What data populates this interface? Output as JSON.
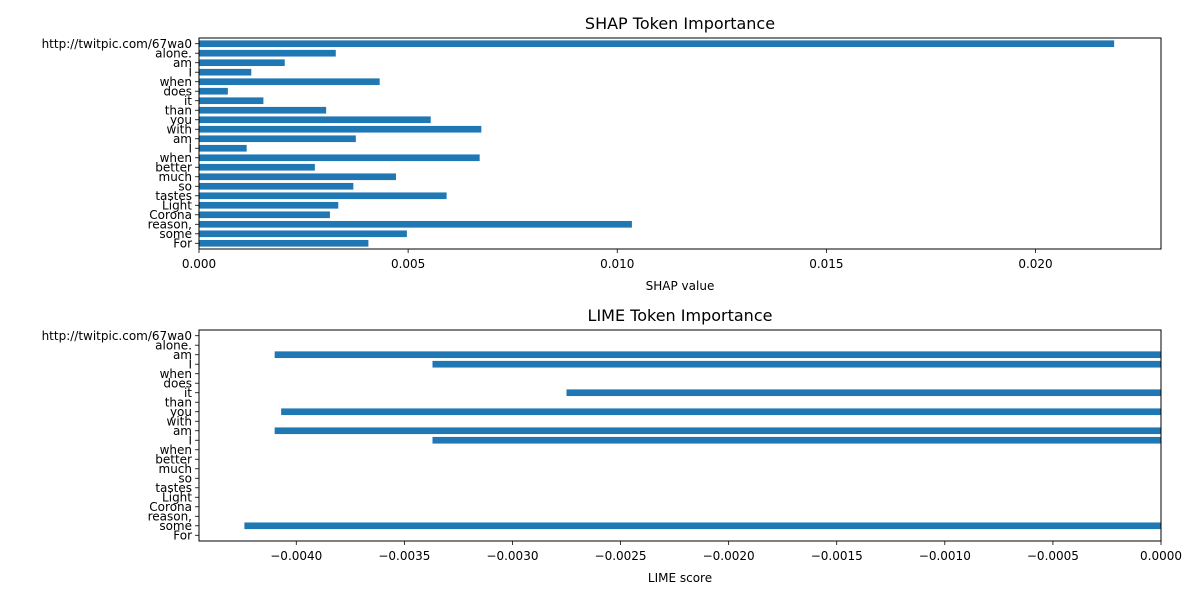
{
  "chart_data": [
    {
      "type": "bar",
      "orientation": "horizontal",
      "title": "SHAP Token Importance",
      "xlabel": "SHAP value",
      "ylabel": "",
      "xlim": [
        0,
        0.023
      ],
      "xticks": [
        0.0,
        0.005,
        0.01,
        0.015,
        0.02
      ],
      "xtick_labels": [
        "0.000",
        "0.005",
        "0.010",
        "0.015",
        "0.020"
      ],
      "bar_color": "#1f77b4",
      "grid": false,
      "categories": [
        "For",
        "some",
        "reason,",
        "Corona",
        "Light",
        "tastes",
        "so",
        "much",
        "better",
        "when",
        "I",
        "am",
        "with",
        "you",
        "than",
        "it",
        "does",
        "when",
        "I",
        "am",
        "alone.",
        "http://twitpic.com/67wa0"
      ],
      "values": [
        0.00405,
        0.00497,
        0.01035,
        0.00313,
        0.00333,
        0.00592,
        0.00369,
        0.00471,
        0.00277,
        0.00671,
        0.00114,
        0.00375,
        0.00675,
        0.00554,
        0.00304,
        0.00154,
        0.00069,
        0.00432,
        0.00125,
        0.00205,
        0.00327,
        0.02188
      ]
    },
    {
      "type": "bar",
      "orientation": "horizontal",
      "title": "LIME Token Importance",
      "xlabel": "LIME score",
      "ylabel": "",
      "xlim": [
        -0.00445,
        0.0
      ],
      "xticks": [
        -0.004,
        -0.0035,
        -0.003,
        -0.0025,
        -0.002,
        -0.0015,
        -0.001,
        -0.0005,
        0.0
      ],
      "xtick_labels": [
        "−0.0040",
        "−0.0035",
        "−0.0030",
        "−0.0025",
        "−0.0020",
        "−0.0015",
        "−0.0010",
        "−0.0005",
        "0.0000"
      ],
      "bar_color": "#1f77b4",
      "grid": false,
      "categories": [
        "For",
        "some",
        "reason,",
        "Corona",
        "Light",
        "tastes",
        "so",
        "much",
        "better",
        "when",
        "I",
        "am",
        "with",
        "you",
        "than",
        "it",
        "does",
        "when",
        "I",
        "am",
        "alone.",
        "http://twitpic.com/67wa0"
      ],
      "values": [
        0,
        -0.00424,
        0,
        0,
        0,
        0,
        0,
        0,
        0,
        0,
        -0.00337,
        -0.0041,
        0,
        -0.00407,
        0,
        -0.00275,
        0,
        0,
        -0.00337,
        -0.0041,
        0,
        0
      ]
    }
  ]
}
